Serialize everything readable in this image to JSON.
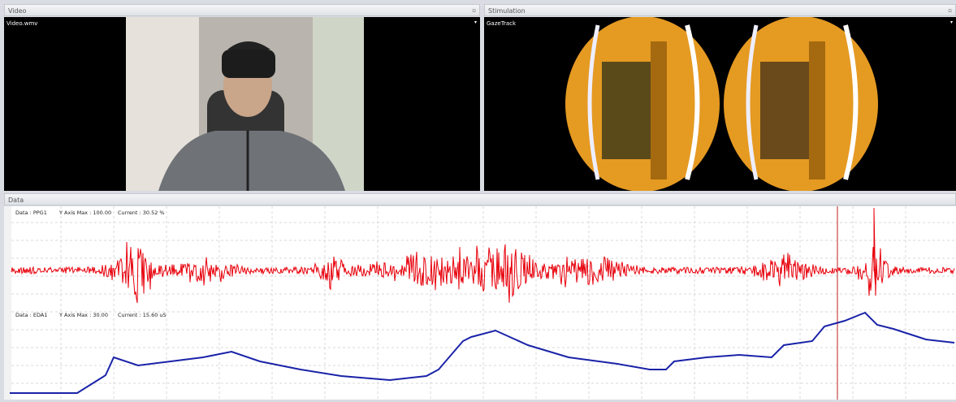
{
  "video": {
    "title": "Video",
    "file": "Video.wmv"
  },
  "stimulation": {
    "title": "Stimulation",
    "source": "GazeTrack"
  },
  "data": {
    "title": "Data",
    "channels": [
      {
        "name": "Data : PPG1",
        "ymax": "Y Axis Max : 100.00",
        "current": "Current : 30.52  %"
      },
      {
        "name": "Data : EDA1",
        "ymax": "Y Axis Max : 30.00",
        "current": "Current : 15.60  uS"
      }
    ]
  }
}
